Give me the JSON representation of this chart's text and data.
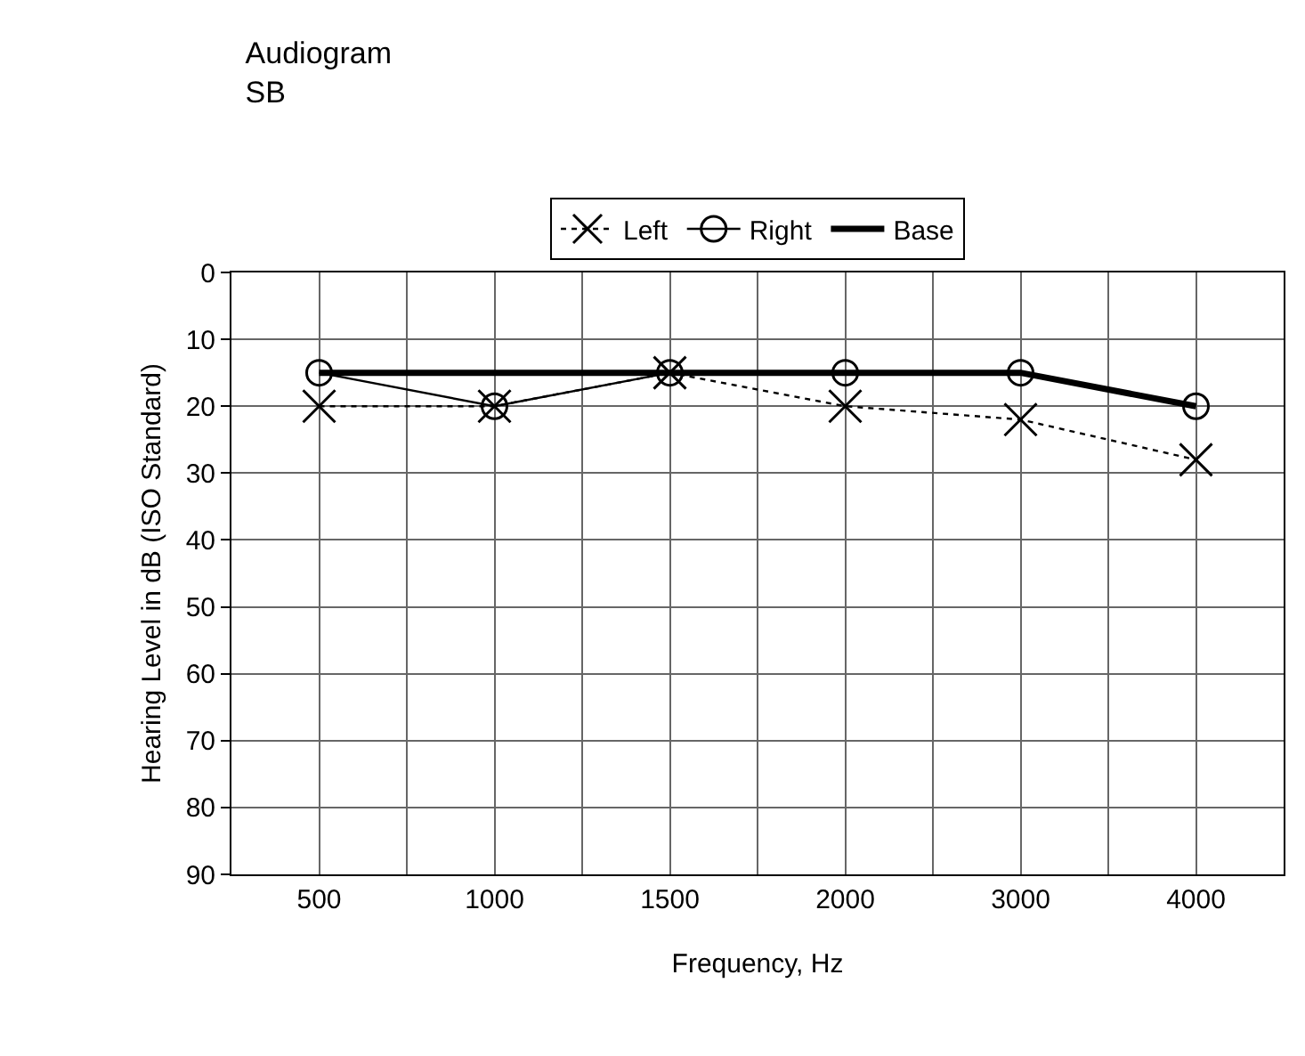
{
  "chart_data": {
    "type": "line",
    "title": "Audiogram",
    "subtitle": "SB",
    "xlabel": "Frequency, Hz",
    "ylabel": "Hearing Level in dB (ISO Standard)",
    "categories": [
      "500",
      "1000",
      "1500",
      "2000",
      "3000",
      "4000"
    ],
    "series": [
      {
        "name": "Left",
        "color": "#000000",
        "values": [
          20,
          20,
          15,
          20,
          22,
          28
        ],
        "marker": "cross",
        "line_style": "dotted"
      },
      {
        "name": "Right",
        "color": "#000000",
        "values": [
          15,
          20,
          15,
          15,
          15,
          20
        ],
        "marker": "circle",
        "line_style": "solid"
      },
      {
        "name": "Base",
        "color": "#000000",
        "values": [
          15,
          15,
          15,
          15,
          15,
          20
        ],
        "marker": "none",
        "line_style": "solid"
      }
    ],
    "ylim": [
      90,
      0
    ],
    "yticks": [
      0,
      10,
      20,
      30,
      40,
      50,
      60,
      70,
      80,
      90
    ],
    "grid": true,
    "legend": "top"
  }
}
